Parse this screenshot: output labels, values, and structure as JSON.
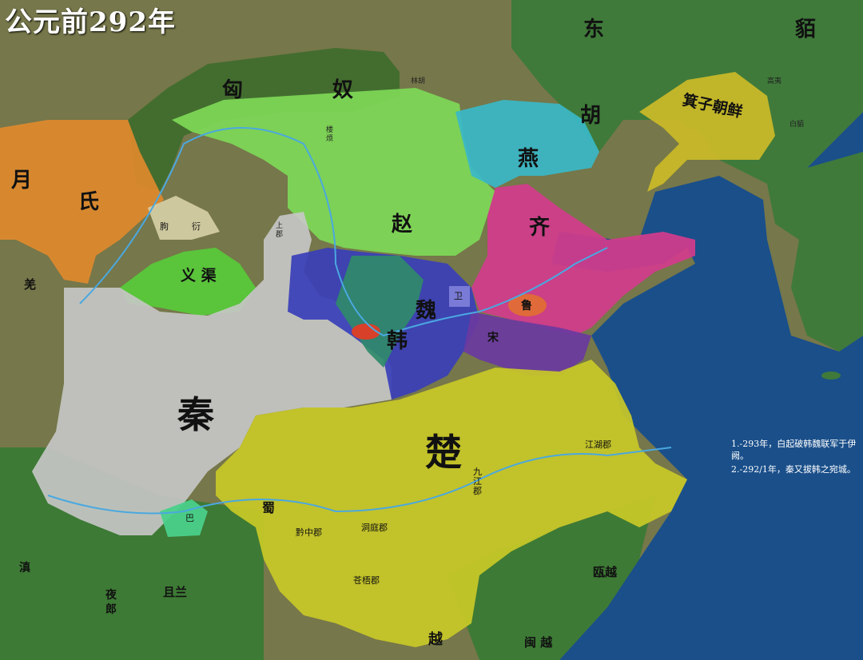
{
  "title": "公元前292年",
  "states": {
    "xiongnu": {
      "c1": "匈",
      "c2": "奴"
    },
    "yuezhi": {
      "c1": "月",
      "c2": "氏"
    },
    "donghu": {
      "c1": "东",
      "c2": "胡"
    },
    "mo": "貊",
    "zhao": "赵",
    "yan": "燕",
    "qi": "齐",
    "wei": "魏",
    "han": "韩",
    "qin": "秦",
    "chu": "楚",
    "song": "宋",
    "lu": "鲁",
    "wei_small": "卫",
    "yiqu": "义 渠",
    "jizi_chaoxian": "箕子朝鲜",
    "quyan": {
      "c1": "朐",
      "c2": "衍"
    },
    "loufan": "楼烦",
    "linhu": "林胡",
    "gaoyi": "高夷",
    "baiyi": "白夷",
    "baiyi2": "白貊",
    "shangjun": "上郡",
    "jiangdong": "江湖郡",
    "jiujiang": "九江郡",
    "qianzhong": "黔中郡",
    "dongting": "洞庭郡",
    "cangwu": "苍梧郡",
    "ouyue": "瓯越",
    "minyue": "闽 越",
    "yue": "越",
    "ba": "巴",
    "shu": "蜀",
    "qiang": "羌",
    "juelan": "且兰",
    "yelang": "夜郎",
    "dian": "滇"
  },
  "notes": [
    "1.-293年，白起破韩魏联军于伊阙。",
    "2.-292/1年，秦又拔韩之宛城。"
  ],
  "colors": {
    "sea": "#1a4f8a",
    "land": "#6f7a4a",
    "xiongnu": "#3e6b2c",
    "yuezhi": "#e08a2c",
    "zhao": "#7ed957",
    "yan": "#3ab8c8",
    "qi": "#d23c8c",
    "wei": "#3a3fb8",
    "han": "#2f8a6a",
    "qin": "#c8c8c8",
    "chu": "#c8c828",
    "song": "#6a3aa0",
    "yiqu": "#58c83a",
    "jizi": "#c8b828",
    "quyan": "#d8d0a8",
    "ba": "#4ad08a"
  }
}
